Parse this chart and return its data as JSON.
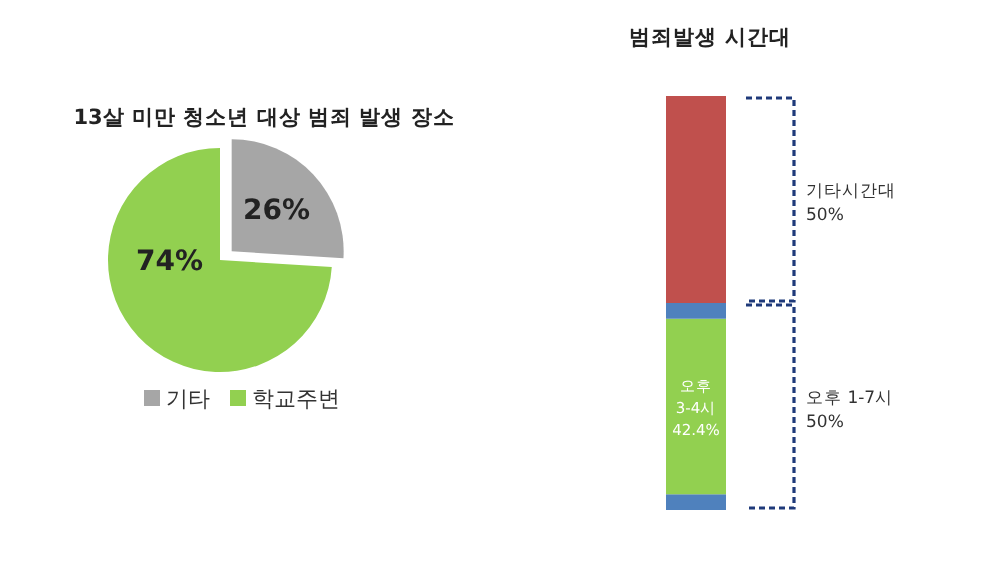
{
  "chart_data": [
    {
      "type": "pie",
      "title": "13살 미만 청소년 대상 범죄 발생 장소",
      "categories": [
        "기타",
        "학교주변"
      ],
      "values": [
        26,
        74
      ],
      "colors": [
        "#a6a6a6",
        "#92d050"
      ],
      "value_labels": [
        "26%",
        "74%"
      ],
      "legend": "bottom"
    },
    {
      "type": "bar",
      "title": "범죄발생 시간대",
      "stacked": true,
      "categories": [
        null
      ],
      "series": [
        {
          "color": "#4f81bd",
          "values": [
            3.8
          ]
        },
        {
          "color": "#92d050",
          "values": [
            42.4
          ],
          "value_labels": [
            "오후\n3-4시\n42.4%"
          ]
        },
        {
          "color": "#4f81bd",
          "values": [
            3.8
          ]
        },
        {
          "color": "#c0504d",
          "values": [
            50
          ]
        }
      ],
      "annotations": [
        "기타시간대\n50%",
        "오후 1-7시\n50%"
      ]
    }
  ]
}
